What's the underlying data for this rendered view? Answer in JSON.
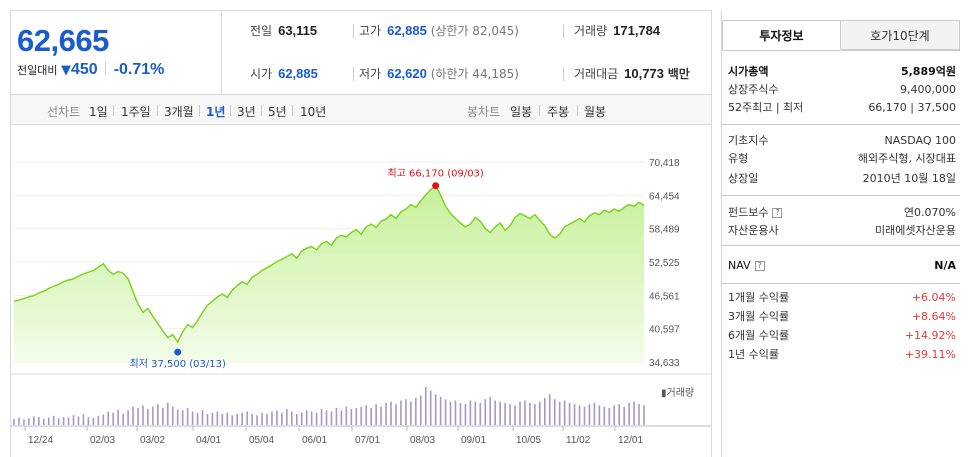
{
  "quote": {
    "price": "62,665",
    "change_label": "전일대비",
    "change_value": "450",
    "change_pct": "-0.71%"
  },
  "stats": {
    "prev_close": {
      "label": "전일",
      "value": "63,115"
    },
    "high": {
      "label": "고가",
      "value": "62,885",
      "sub": "(상한가 82,045)"
    },
    "volume": {
      "label": "거래량",
      "value": "171,784"
    },
    "open": {
      "label": "시가",
      "value": "62,885"
    },
    "low": {
      "label": "저가",
      "value": "62,620",
      "sub": "(하한가 44,185)"
    },
    "trade_amount": {
      "label": "거래대금",
      "value": "10,773",
      "unit": "백만"
    }
  },
  "period_tabs": {
    "label": "선차트",
    "items": [
      "1일",
      "1주일",
      "3개월",
      "1년",
      "3년",
      "5년",
      "10년"
    ],
    "active": "1년"
  },
  "candle_tabs": {
    "label": "봉차트",
    "items": [
      "일봉",
      "주봉",
      "월봉"
    ]
  },
  "right_tabs": {
    "active": "투자정보",
    "other": "호가10단계"
  },
  "info": {
    "market_cap": {
      "label": "시가총액",
      "value": "5,889억원"
    },
    "shares": {
      "label": "상장주식수",
      "value": "9,400,000"
    },
    "week52": {
      "label": "52주최고 | 최저",
      "value": "66,170 | 37,500"
    },
    "index": {
      "label": "기초지수",
      "value": "NASDAQ 100"
    },
    "type": {
      "label": "유형",
      "value": "해외주식형, 시장대표"
    },
    "listed": {
      "label": "상장일",
      "value": "2010년 10월 18일"
    },
    "fee": {
      "label": "펀드보수",
      "value": "연0.070%"
    },
    "manager": {
      "label": "자산운용사",
      "value": "미래에셋자산운용"
    },
    "nav": {
      "label": "NAV",
      "value": "N/A"
    },
    "returns": [
      {
        "label": "1개월 수익률",
        "value": "+6.04%"
      },
      {
        "label": "3개월 수익률",
        "value": "+8.64%"
      },
      {
        "label": "6개월 수익률",
        "value": "+14.92%"
      },
      {
        "label": "1년 수익률",
        "value": "+39.11%"
      }
    ]
  },
  "chart_data": {
    "type": "area",
    "y_ticks": [
      "70,418",
      "64,454",
      "58,489",
      "52,525",
      "46,561",
      "40,597",
      "34,633"
    ],
    "ylim": [
      34633,
      70418
    ],
    "x_ticks": [
      "12/24",
      "02/03",
      "03/02",
      "04/01",
      "05/04",
      "06/01",
      "07/01",
      "08/03",
      "09/01",
      "10/05",
      "11/02",
      "12/01"
    ],
    "max_label": "최고 66,170 (09/03)",
    "min_label": "최저 37,500 (03/13)",
    "volume_legend": "거래량",
    "colors": {
      "line": "#7ed321",
      "fill_top": "#c6f09a",
      "fill_bottom": "#f3fce9",
      "max": "#e2121c",
      "min": "#1a5ccc",
      "volume": "#a896c8"
    },
    "values": [
      45500,
      45700,
      46000,
      46300,
      46500,
      47000,
      47300,
      47800,
      48200,
      48500,
      49000,
      49300,
      49500,
      50000,
      50400,
      50700,
      51000,
      51600,
      52200,
      51000,
      50300,
      50800,
      50500,
      49500,
      47200,
      45000,
      43500,
      44200,
      42800,
      41500,
      40200,
      39000,
      39500,
      38200,
      40000,
      41300,
      40800,
      42000,
      43500,
      44800,
      45500,
      46300,
      46800,
      46200,
      47500,
      48300,
      49000,
      48500,
      49800,
      50300,
      51000,
      51500,
      52000,
      52600,
      53000,
      53500,
      54000,
      53200,
      54500,
      55000,
      55300,
      54700,
      55800,
      56200,
      55500,
      56800,
      57300,
      57000,
      57800,
      58300,
      57500,
      58800,
      59300,
      58700,
      59800,
      60200,
      61000,
      60300,
      61500,
      62000,
      62800,
      62300,
      63500,
      64500,
      65500,
      66170,
      64500,
      62500,
      61200,
      60300,
      59500,
      58800,
      59300,
      60500,
      59800,
      58500,
      57800,
      58800,
      59500,
      58200,
      59000,
      60500,
      61200,
      60800,
      60300,
      61000,
      60000,
      59000,
      57500,
      56800,
      57500,
      58800,
      59300,
      59800,
      60300,
      59700,
      60800,
      61300,
      61000,
      61800,
      61400,
      62000,
      61600,
      62300,
      62800,
      62500,
      63200,
      62665
    ],
    "volumes": [
      10,
      12,
      9,
      11,
      14,
      13,
      10,
      12,
      15,
      11,
      13,
      12,
      16,
      14,
      18,
      13,
      12,
      15,
      17,
      22,
      20,
      25,
      18,
      24,
      30,
      28,
      32,
      26,
      30,
      34,
      28,
      36,
      30,
      25,
      24,
      28,
      22,
      20,
      24,
      18,
      20,
      22,
      18,
      20,
      16,
      18,
      20,
      22,
      18,
      16,
      20,
      18,
      22,
      24,
      20,
      26,
      22,
      18,
      20,
      24,
      22,
      20,
      26,
      24,
      22,
      28,
      24,
      30,
      26,
      28,
      30,
      32,
      28,
      34,
      30,
      36,
      38,
      34,
      40,
      42,
      38,
      44,
      48,
      62,
      56,
      50,
      46,
      42,
      38,
      40,
      36,
      34,
      40,
      38,
      36,
      42,
      46,
      40,
      38,
      36,
      34,
      32,
      38,
      40,
      36,
      34,
      38,
      44,
      50,
      42,
      38,
      40,
      36,
      34,
      32,
      30,
      34,
      36,
      32,
      30,
      28,
      32,
      34,
      30,
      36,
      38,
      34,
      32
    ]
  }
}
